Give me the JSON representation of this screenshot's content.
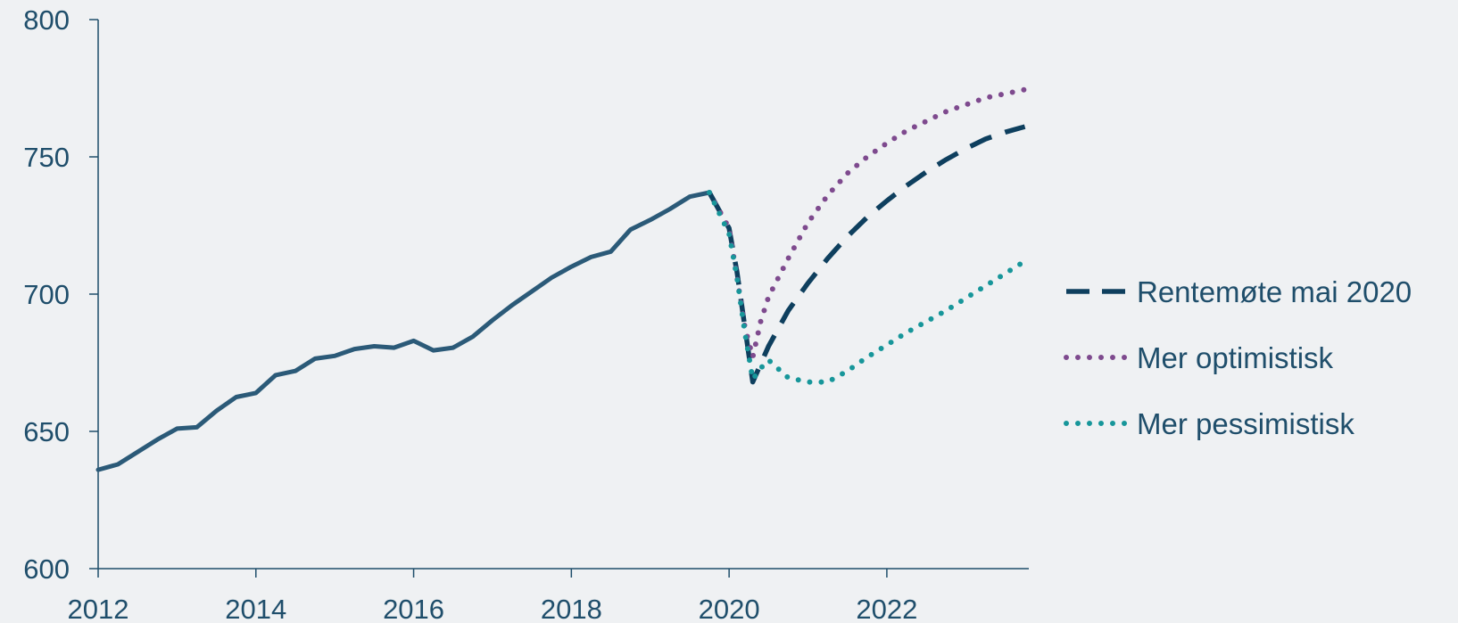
{
  "chart_data": {
    "type": "line",
    "title": "",
    "xlabel": "",
    "ylabel": "",
    "xlim": [
      2012,
      2023.8
    ],
    "ylim": [
      600,
      800
    ],
    "x_ticks": [
      2012,
      2014,
      2016,
      2018,
      2020,
      2022
    ],
    "x_tick_labels": [
      "2012",
      "2014",
      "2016",
      "2018",
      "2020",
      "2022"
    ],
    "y_ticks": [
      600,
      650,
      700,
      750,
      800
    ],
    "y_tick_labels": [
      "600",
      "650",
      "700",
      "750",
      "800"
    ],
    "grid": false,
    "legend_position": "right",
    "series": [
      {
        "key": "historical",
        "style": "solid",
        "color": "#2b5a78",
        "points": [
          [
            2012.0,
            636
          ],
          [
            2012.25,
            638
          ],
          [
            2012.5,
            642.5
          ],
          [
            2012.75,
            647
          ],
          [
            2013.0,
            651
          ],
          [
            2013.25,
            651.5
          ],
          [
            2013.5,
            657.5
          ],
          [
            2013.75,
            662.5
          ],
          [
            2014.0,
            664
          ],
          [
            2014.25,
            670.5
          ],
          [
            2014.5,
            672
          ],
          [
            2014.75,
            676.5
          ],
          [
            2015.0,
            677.5
          ],
          [
            2015.25,
            680
          ],
          [
            2015.5,
            681
          ],
          [
            2015.75,
            680.5
          ],
          [
            2016.0,
            683
          ],
          [
            2016.25,
            679.5
          ],
          [
            2016.5,
            680.5
          ],
          [
            2016.75,
            684.5
          ],
          [
            2017.0,
            690.5
          ],
          [
            2017.25,
            696
          ],
          [
            2017.5,
            701
          ],
          [
            2017.75,
            706
          ],
          [
            2018.0,
            710
          ],
          [
            2018.25,
            713.5
          ],
          [
            2018.5,
            715.5
          ],
          [
            2018.75,
            723.5
          ],
          [
            2019.0,
            727
          ],
          [
            2019.25,
            731
          ],
          [
            2019.5,
            735.5
          ],
          [
            2019.75,
            737
          ]
        ]
      },
      {
        "key": "baseline",
        "name": "Rentemøte mai 2020",
        "style": "dashed",
        "color": "#0e3f5e",
        "points": [
          [
            2019.75,
            737
          ],
          [
            2020.0,
            724
          ],
          [
            2020.1,
            708
          ],
          [
            2020.2,
            688
          ],
          [
            2020.3,
            668
          ],
          [
            2020.5,
            681
          ],
          [
            2020.75,
            694
          ],
          [
            2021.0,
            704
          ],
          [
            2021.25,
            713
          ],
          [
            2021.5,
            721
          ],
          [
            2021.75,
            728
          ],
          [
            2022.0,
            734
          ],
          [
            2022.25,
            739.5
          ],
          [
            2022.5,
            744.5
          ],
          [
            2022.75,
            749
          ],
          [
            2023.0,
            753
          ],
          [
            2023.25,
            756.5
          ],
          [
            2023.5,
            759
          ],
          [
            2023.75,
            761
          ]
        ]
      },
      {
        "key": "optimistic",
        "name": "Mer optimistisk",
        "style": "dotted",
        "color": "#7e4a8e",
        "points": [
          [
            2019.75,
            737
          ],
          [
            2020.0,
            724
          ],
          [
            2020.1,
            706
          ],
          [
            2020.2,
            688
          ],
          [
            2020.3,
            677
          ],
          [
            2020.4,
            690
          ],
          [
            2020.5,
            699
          ],
          [
            2020.75,
            713
          ],
          [
            2021.0,
            726
          ],
          [
            2021.25,
            736
          ],
          [
            2021.5,
            744
          ],
          [
            2021.75,
            750
          ],
          [
            2022.0,
            755
          ],
          [
            2022.25,
            759.5
          ],
          [
            2022.5,
            763
          ],
          [
            2022.75,
            766.5
          ],
          [
            2023.0,
            769
          ],
          [
            2023.25,
            771.5
          ],
          [
            2023.5,
            773
          ],
          [
            2023.75,
            774.5
          ]
        ]
      },
      {
        "key": "pessimistic",
        "name": "Mer pessimistisk",
        "style": "dotted",
        "color": "#17969a",
        "points": [
          [
            2019.75,
            737
          ],
          [
            2020.0,
            722
          ],
          [
            2020.1,
            706
          ],
          [
            2020.2,
            686
          ],
          [
            2020.3,
            669
          ],
          [
            2020.4,
            673
          ],
          [
            2020.5,
            676
          ],
          [
            2020.75,
            669.5
          ],
          [
            2021.0,
            668
          ],
          [
            2021.25,
            668
          ],
          [
            2021.5,
            672
          ],
          [
            2021.75,
            677
          ],
          [
            2022.0,
            681.5
          ],
          [
            2022.25,
            686
          ],
          [
            2022.5,
            690
          ],
          [
            2022.75,
            694
          ],
          [
            2023.0,
            698.5
          ],
          [
            2023.25,
            703
          ],
          [
            2023.5,
            707.5
          ],
          [
            2023.75,
            712
          ]
        ]
      }
    ]
  }
}
